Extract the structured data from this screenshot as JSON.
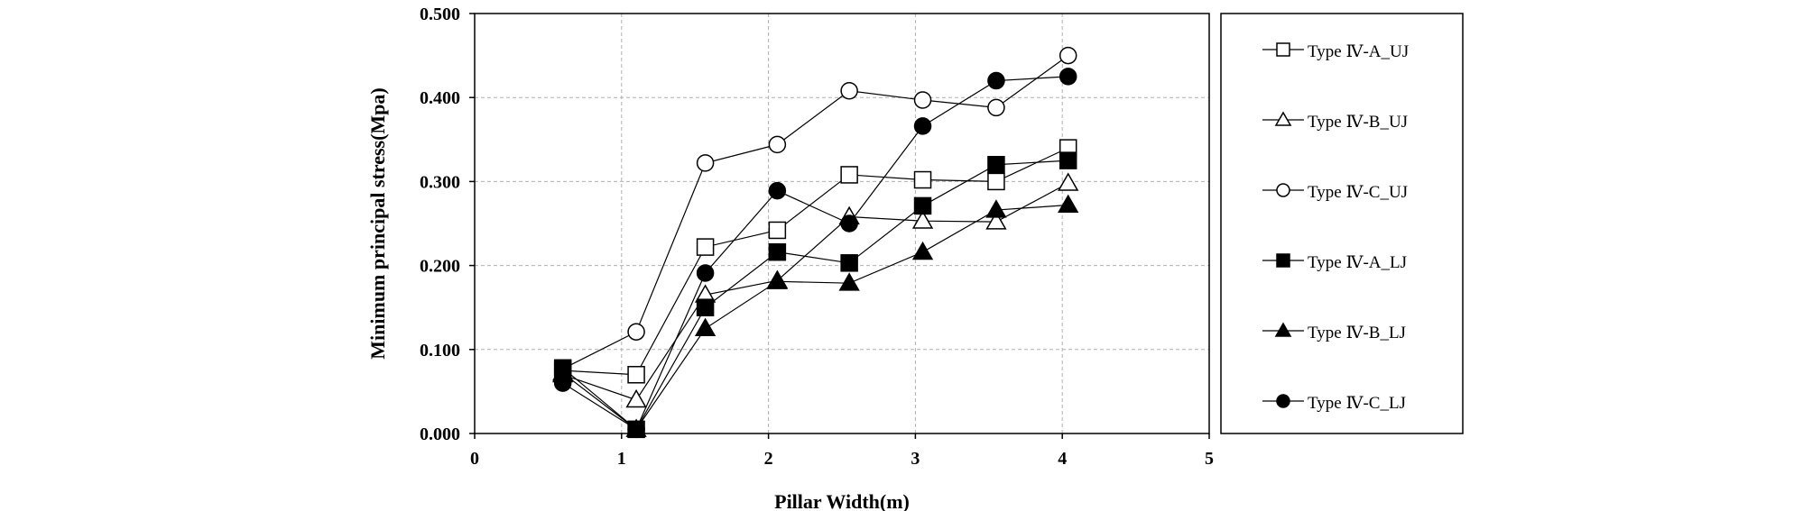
{
  "chart_data": {
    "type": "line",
    "title": "",
    "xlabel": "Pillar Width(m)",
    "ylabel": "Minimum principal stress(Mpa)",
    "xlim": [
      0,
      5
    ],
    "ylim": [
      0,
      0.5
    ],
    "x_ticks": [
      "0",
      "1",
      "2",
      "3",
      "4",
      "5"
    ],
    "y_ticks": [
      "0.000",
      "0.100",
      "0.200",
      "0.300",
      "0.400",
      "0.500"
    ],
    "grid": true,
    "legend_position": "right",
    "x": [
      0.6,
      1.1,
      1.57,
      2.06,
      2.55,
      3.05,
      3.55,
      4.04
    ],
    "series": [
      {
        "name": "Type Ⅳ-A_UJ",
        "marker": "square",
        "fill": "open",
        "values": [
          0.075,
          0.07,
          0.222,
          0.242,
          0.308,
          0.302,
          0.3,
          0.34
        ]
      },
      {
        "name": "Type Ⅳ-B_UJ",
        "marker": "triangle",
        "fill": "open",
        "values": [
          0.07,
          0.04,
          0.165,
          0.182,
          0.258,
          0.253,
          0.252,
          0.298
        ]
      },
      {
        "name": "Type Ⅳ-C_UJ",
        "marker": "circle",
        "fill": "open",
        "values": [
          0.077,
          0.121,
          0.322,
          0.344,
          0.408,
          0.397,
          0.388,
          0.45
        ]
      },
      {
        "name": "Type Ⅳ-A_LJ",
        "marker": "square",
        "fill": "solid",
        "values": [
          0.078,
          0.005,
          0.15,
          0.216,
          0.203,
          0.271,
          0.32,
          0.325
        ]
      },
      {
        "name": "Type Ⅳ-B_LJ",
        "marker": "triangle",
        "fill": "solid",
        "values": [
          0.072,
          0.005,
          0.125,
          0.181,
          0.179,
          0.216,
          0.266,
          0.272
        ]
      },
      {
        "name": "Type Ⅳ-C_LJ",
        "marker": "circle",
        "fill": "solid",
        "values": [
          0.06,
          0.005,
          0.191,
          0.289,
          0.25,
          0.366,
          0.42,
          0.425
        ]
      }
    ]
  }
}
